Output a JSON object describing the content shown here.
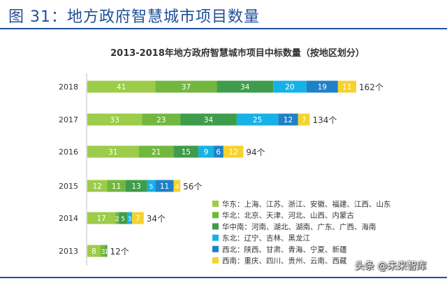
{
  "figure_title": "图 31：地方政府智慧城市项目数量",
  "watermark": "头条 @未来智库",
  "colors": {
    "header": "#1f4e9a",
    "series": [
      "#9ccc49",
      "#72b83f",
      "#3e9c4a",
      "#16b2e6",
      "#1f81c8",
      "#f8d22c"
    ]
  },
  "chart_data": {
    "type": "bar",
    "orientation": "horizontal",
    "stacked": true,
    "title": "2013-2018年地方政府智慧城市项目中标数量（按地区划分）",
    "categories": [
      "2018",
      "2017",
      "2016",
      "2015",
      "2014",
      "2013"
    ],
    "series": [
      {
        "name": "华东：上海、江苏、浙江、安徽、福建、江西、山东",
        "values": [
          41,
          33,
          31,
          12,
          17,
          8
        ]
      },
      {
        "name": "华北：北京、天津、河北、山西、内蒙古",
        "values": [
          37,
          23,
          21,
          11,
          2,
          3
        ]
      },
      {
        "name": "华中南：河南、湖北、湖南、广东、广西、海南",
        "values": [
          34,
          34,
          15,
          13,
          5,
          1
        ]
      },
      {
        "name": "东北：辽宁、吉林、黑龙江",
        "values": [
          20,
          25,
          9,
          5,
          3,
          0
        ]
      },
      {
        "name": "西北：陕西、甘肃、青海、宁夏、新疆",
        "values": [
          19,
          12,
          6,
          11,
          0,
          0
        ]
      },
      {
        "name": "西南：重庆、四川、贵州、云南、西藏",
        "values": [
          11,
          7,
          12,
          4,
          7,
          0
        ]
      }
    ],
    "data_labels": [
      [
        "41",
        "37",
        "34",
        "20",
        "19",
        "11"
      ],
      [
        "33",
        "23",
        "34",
        "25",
        "12",
        "7"
      ],
      [
        "31",
        "21",
        "15",
        "9",
        "6",
        "12"
      ],
      [
        "12",
        "11",
        "13",
        "5",
        "11",
        "4"
      ],
      [
        "17",
        "2",
        "5",
        "3",
        "",
        "7"
      ],
      [
        "8",
        "3",
        "1",
        "",
        "",
        ""
      ]
    ],
    "totals": [
      "162个",
      "134个",
      "94个",
      "56个",
      "34个",
      "12个"
    ],
    "xlim": [
      0,
      162
    ],
    "grid": false,
    "legend_position": "right-inside"
  }
}
